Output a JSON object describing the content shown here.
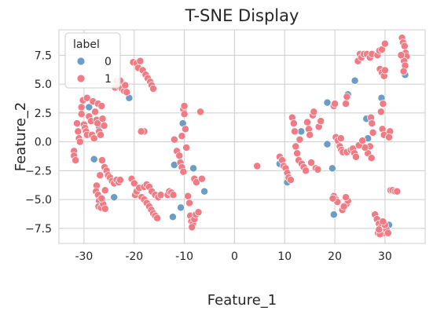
{
  "chart_data": {
    "type": "scatter",
    "title": "T-SNE Display",
    "xlabel": "Feature_1",
    "ylabel": "Feature_2",
    "xlim": [
      -35,
      38
    ],
    "ylim": [
      -8.8,
      9.7
    ],
    "xticks": [
      -30,
      -20,
      -10,
      0,
      10,
      20,
      30
    ],
    "yticks": [
      -7.5,
      -5.0,
      -2.5,
      0.0,
      2.5,
      5.0,
      7.5
    ],
    "xtick_labels": [
      "-30",
      "-20",
      "-10",
      "0",
      "10",
      "20",
      "30"
    ],
    "ytick_labels": [
      "−7.5",
      "−5.0",
      "−2.5",
      "0.0",
      "2.5",
      "5.0",
      "7.5"
    ],
    "grid": true,
    "legend": {
      "title": "label",
      "placement": "top-left"
    },
    "series": [
      {
        "name": "0",
        "color": "#6b9dc5",
        "points": [
          [
            -29,
            3.0
          ],
          [
            -27,
            1.3
          ],
          [
            -28,
            -1.5
          ],
          [
            -24,
            -4.8
          ],
          [
            -21,
            3.8
          ],
          [
            -18.5,
            0.9
          ],
          [
            -12,
            -2.0
          ],
          [
            -10.3,
            1.6
          ],
          [
            -8.2,
            -2.3
          ],
          [
            -6,
            -4.3
          ],
          [
            -12.3,
            -6.5
          ],
          [
            -10.7,
            -5.7
          ],
          [
            9,
            -1.9
          ],
          [
            10.5,
            -3.5
          ],
          [
            13.3,
            0.9
          ],
          [
            18.5,
            3.4
          ],
          [
            22.6,
            4.1
          ],
          [
            24,
            5.3
          ],
          [
            18.5,
            -0.2
          ],
          [
            19.5,
            -2.3
          ],
          [
            19.8,
            -6.3
          ],
          [
            26.3,
            2.0
          ],
          [
            26.6,
            0.3
          ],
          [
            29.3,
            3.8
          ],
          [
            34,
            5.8
          ],
          [
            30.8,
            -7.2
          ]
        ]
      },
      {
        "name": "1",
        "color": "#f07b84",
        "points": [
          [
            -32,
            -0.8
          ],
          [
            -32,
            -1.2
          ],
          [
            -31.7,
            -1.6
          ],
          [
            -31.4,
            1.6
          ],
          [
            -31.2,
            0.9
          ],
          [
            -31,
            0.3
          ],
          [
            -30.8,
            0.0
          ],
          [
            -30.5,
            3.0
          ],
          [
            -30.5,
            2.4
          ],
          [
            -30.2,
            3.6
          ],
          [
            -30.0,
            1.5
          ],
          [
            -29.8,
            1.2
          ],
          [
            -29.6,
            0.9
          ],
          [
            -29.4,
            3.8
          ],
          [
            -29.4,
            0.6
          ],
          [
            -29.0,
            2.2
          ],
          [
            -28.6,
            1.8
          ],
          [
            -28.4,
            0.6
          ],
          [
            -28.2,
            3.5
          ],
          [
            -28.0,
            0.3
          ],
          [
            -27.8,
            2.6
          ],
          [
            -27.5,
            1.9
          ],
          [
            -27.3,
            1.6
          ],
          [
            -27.2,
            3.3
          ],
          [
            -27.0,
            0.9
          ],
          [
            -26.7,
            0.6
          ],
          [
            -26.5,
            3.1
          ],
          [
            -26.3,
            2.0
          ],
          [
            -26.0,
            1.4
          ],
          [
            -26.4,
            -1.6
          ],
          [
            -25.9,
            -2.2
          ],
          [
            -25.5,
            -2.5
          ],
          [
            -25.2,
            -2.9
          ],
          [
            -24.8,
            -3.1
          ],
          [
            -24.4,
            -3.4
          ],
          [
            -24.0,
            -3.6
          ],
          [
            -23.5,
            -3.3
          ],
          [
            -23.1,
            -3.5
          ],
          [
            -22.8,
            -3.3
          ],
          [
            -27.5,
            -3.8
          ],
          [
            -27.6,
            -4.3
          ],
          [
            -27.2,
            -4.6
          ],
          [
            -27.0,
            -5.1
          ],
          [
            -27.1,
            -5.6
          ],
          [
            -26.6,
            -5.7
          ],
          [
            -26.2,
            -5.4
          ],
          [
            -25.8,
            -4.2
          ],
          [
            -26.5,
            -4.9
          ],
          [
            -25.8,
            -5.8
          ],
          [
            -26.8,
            -2.9
          ],
          [
            -23.8,
            4.7
          ],
          [
            -23.5,
            5.3
          ],
          [
            -23.0,
            4.8
          ],
          [
            -22.8,
            5.3
          ],
          [
            -22.4,
            4.6
          ],
          [
            -22.0,
            4.4
          ],
          [
            -21.8,
            4.9
          ],
          [
            -21.5,
            4.3
          ],
          [
            -20.2,
            6.9
          ],
          [
            -19.5,
            6.8
          ],
          [
            -19.2,
            6.4
          ],
          [
            -18.8,
            7.0
          ],
          [
            -18.3,
            6.2
          ],
          [
            -17.7,
            5.8
          ],
          [
            -17.3,
            5.5
          ],
          [
            -16.8,
            5.2
          ],
          [
            -16.5,
            4.9
          ],
          [
            -16.2,
            4.6
          ],
          [
            -18.0,
            0.9
          ],
          [
            -18.6,
            0.9
          ],
          [
            -20.5,
            -3.2
          ],
          [
            -20.0,
            -3.6
          ],
          [
            -19.8,
            -4.6
          ],
          [
            -19.5,
            -4.3
          ],
          [
            -19.0,
            -4.0
          ],
          [
            -18.5,
            -4.8
          ],
          [
            -18.0,
            -5.0
          ],
          [
            -17.5,
            -5.3
          ],
          [
            -17.0,
            -5.6
          ],
          [
            -16.6,
            -5.9
          ],
          [
            -16.2,
            -6.2
          ],
          [
            -15.8,
            -6.4
          ],
          [
            -15.4,
            -6.6
          ],
          [
            -18.0,
            -3.9
          ],
          [
            -17.5,
            -3.7
          ],
          [
            -17.0,
            -3.9
          ],
          [
            -16.5,
            -4.3
          ],
          [
            -15.8,
            -4.6
          ],
          [
            -15.2,
            -4.8
          ],
          [
            -14.7,
            -4.6
          ],
          [
            -13.3,
            -4.6
          ],
          [
            -13.0,
            -4.3
          ],
          [
            -12.6,
            -4.4
          ],
          [
            -12.2,
            -4.6
          ],
          [
            -12.0,
            0.2
          ],
          [
            -11.5,
            -0.8
          ],
          [
            -11.0,
            -1.2
          ],
          [
            -10.8,
            -1.8
          ],
          [
            -10.5,
            -2.2
          ],
          [
            -10.2,
            -2.6
          ],
          [
            -10.5,
            0.5
          ],
          [
            -10.2,
            2.8
          ],
          [
            -10.0,
            2.4
          ],
          [
            -10.0,
            3.1
          ],
          [
            -9.8,
            1.1
          ],
          [
            -9.6,
            -0.5
          ],
          [
            -8.0,
            -3.2
          ],
          [
            -7.6,
            -3.5
          ],
          [
            -6.8,
            2.6
          ],
          [
            -6.5,
            -3.2
          ],
          [
            -9.3,
            -4.7
          ],
          [
            -9.0,
            -5.3
          ],
          [
            -8.8,
            -6.4
          ],
          [
            -8.6,
            -6.9
          ],
          [
            -8.3,
            -7.1
          ],
          [
            -8.0,
            -6.7
          ],
          [
            -7.7,
            -6.3
          ],
          [
            -7.2,
            -6.1
          ],
          [
            -8.5,
            -7.4
          ],
          [
            4.5,
            -2.1
          ],
          [
            9.0,
            -1.3
          ],
          [
            9.5,
            -1.6
          ],
          [
            9.8,
            -2.1
          ],
          [
            10.2,
            -2.3
          ],
          [
            10.5,
            -2.7
          ],
          [
            10.8,
            -3.1
          ],
          [
            11.2,
            -3.3
          ],
          [
            11.5,
            2.1
          ],
          [
            11.8,
            1.6
          ],
          [
            12.0,
            0.9
          ],
          [
            12.2,
            -0.4
          ],
          [
            12.5,
            -1.0
          ],
          [
            12.8,
            -1.6
          ],
          [
            13.0,
            0.2
          ],
          [
            13.4,
            -1.9
          ],
          [
            13.8,
            -2.2
          ],
          [
            14.2,
            -2.5
          ],
          [
            14.5,
            1.7
          ],
          [
            14.8,
            1.1
          ],
          [
            15.0,
            0.6
          ],
          [
            15.3,
            -1.8
          ],
          [
            15.6,
            2.3
          ],
          [
            15.8,
            2.6
          ],
          [
            16.2,
            -2.3
          ],
          [
            16.6,
            -2.4
          ],
          [
            16.8,
            1.3
          ],
          [
            17.2,
            1.8
          ],
          [
            19.8,
            3.1
          ],
          [
            20.0,
            3.3
          ],
          [
            20.2,
            0.4
          ],
          [
            20.6,
            0.1
          ],
          [
            21.0,
            -0.4
          ],
          [
            21.3,
            -0.7
          ],
          [
            21.6,
            -0.9
          ],
          [
            21.2,
            0.3
          ],
          [
            22.4,
            -0.9
          ],
          [
            23.2,
            -0.7
          ],
          [
            23.6,
            -0.6
          ],
          [
            23.9,
            -1.0
          ],
          [
            24.2,
            -1.3
          ],
          [
            22.2,
            3.3
          ],
          [
            22.4,
            3.9
          ],
          [
            24.6,
            7.0
          ],
          [
            25.0,
            7.6
          ],
          [
            25.3,
            7.3
          ],
          [
            25.8,
            7.6
          ],
          [
            26.4,
            7.6
          ],
          [
            27.0,
            7.3
          ],
          [
            27.4,
            7.6
          ],
          [
            28.5,
            7.5
          ],
          [
            28.9,
            7.9
          ],
          [
            29.4,
            8.0
          ],
          [
            30.0,
            8.5
          ],
          [
            29.0,
            6.3
          ],
          [
            29.4,
            6.0
          ],
          [
            29.8,
            5.7
          ],
          [
            30.0,
            6.2
          ],
          [
            29.6,
            3.3
          ],
          [
            29.2,
            2.6
          ],
          [
            29.5,
            1.1
          ],
          [
            29.8,
            0.6
          ],
          [
            27.2,
            2.1
          ],
          [
            27.4,
            1.6
          ],
          [
            27.6,
            0.8
          ],
          [
            27.0,
            -0.4
          ],
          [
            26.6,
            -1.0
          ],
          [
            27.3,
            -1.4
          ],
          [
            26.0,
            -0.5
          ],
          [
            24.8,
            -0.3
          ],
          [
            25.5,
            0.1
          ],
          [
            33.4,
            9.0
          ],
          [
            33.6,
            8.6
          ],
          [
            33.9,
            8.3
          ],
          [
            34.1,
            7.7
          ],
          [
            34.3,
            7.4
          ],
          [
            33.8,
            7.0
          ],
          [
            34.0,
            6.6
          ],
          [
            33.7,
            6.1
          ],
          [
            33.2,
            7.5
          ],
          [
            31.0,
            0.9
          ],
          [
            30.8,
            0.4
          ],
          [
            31.1,
            -4.2
          ],
          [
            31.5,
            -4.2
          ],
          [
            32.0,
            -4.3
          ],
          [
            32.4,
            -4.3
          ],
          [
            19.8,
            -4.7
          ],
          [
            20.2,
            -5.0
          ],
          [
            20.5,
            -5.2
          ],
          [
            19.6,
            -4.9
          ],
          [
            21.5,
            -5.9
          ],
          [
            22.3,
            -5.4
          ],
          [
            22.6,
            -5.1
          ],
          [
            22.2,
            -4.8
          ],
          [
            21.8,
            -5.6
          ],
          [
            28.0,
            -6.3
          ],
          [
            28.4,
            -6.7
          ],
          [
            28.8,
            -7.1
          ],
          [
            29.2,
            -7.4
          ],
          [
            29.5,
            -7.7
          ],
          [
            29.8,
            -7.9
          ],
          [
            30.3,
            -7.6
          ],
          [
            30.6,
            -7.9
          ],
          [
            28.6,
            -7.9
          ],
          [
            29.0,
            -8.0
          ],
          [
            30.0,
            -7.2
          ],
          [
            29.6,
            -6.9
          ],
          [
            28.8,
            -7.6
          ]
        ]
      }
    ]
  }
}
